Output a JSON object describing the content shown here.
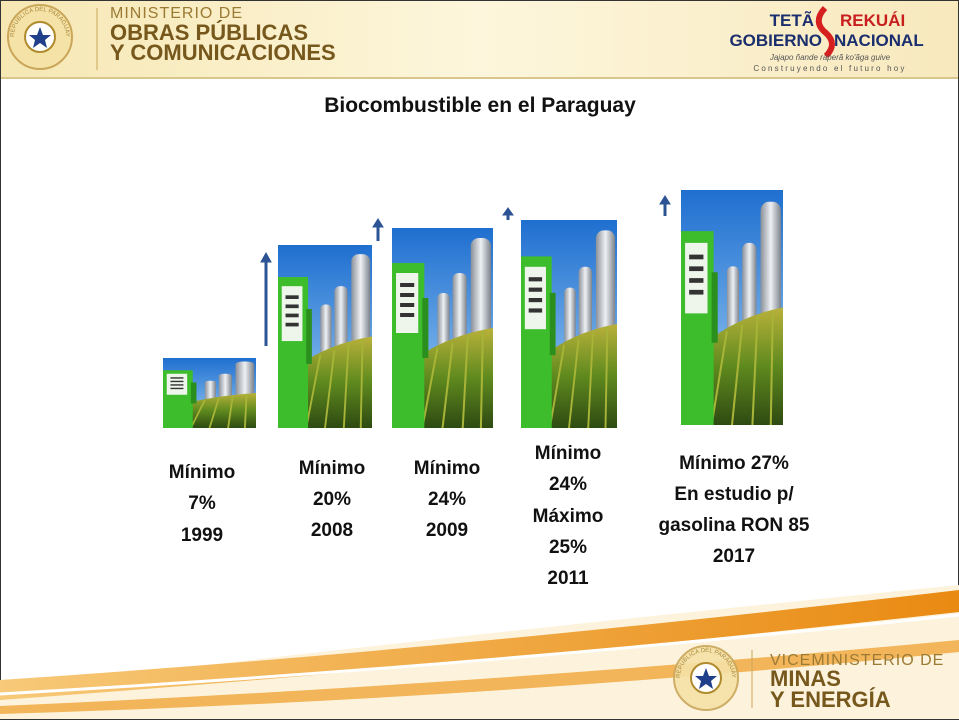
{
  "header": {
    "ministry": [
      "MINISTERIO DE",
      "OBRAS PÚBLICAS",
      "Y COMUNICACIONES"
    ],
    "seal_text": "REPUBLICA DEL PARAGUAY",
    "gov_logo": {
      "line1a": "TETÃ",
      "line1b": "REKUÁI",
      "line2a": "GOBIERNO",
      "line2b": "NACIONAL",
      "motto1": "Jajapo ñande raperã ko'ãga guive",
      "motto2": "Construyendo el futuro hoy"
    }
  },
  "title": "Biocombustible en el Paraguay",
  "steps": [
    {
      "lines": [
        "Mínimo",
        "7%",
        "1999"
      ]
    },
    {
      "lines": [
        "Mínimo",
        "20%",
        "2008"
      ]
    },
    {
      "lines": [
        "Mínimo",
        "24%",
        "2009"
      ]
    },
    {
      "lines": [
        "Mínimo",
        "24%",
        "Máximo",
        "25%",
        "2011"
      ]
    },
    {
      "lines": [
        "Mínimo 27%",
        "En estudio p/",
        "gasolina RON 85",
        "2017"
      ]
    }
  ],
  "footer": {
    "lines": [
      "VICEMINISTERIO DE",
      "MINAS",
      "Y ENERGÍA"
    ],
    "seal_text": "REPUBLICA DEL PARAGUAY"
  }
}
